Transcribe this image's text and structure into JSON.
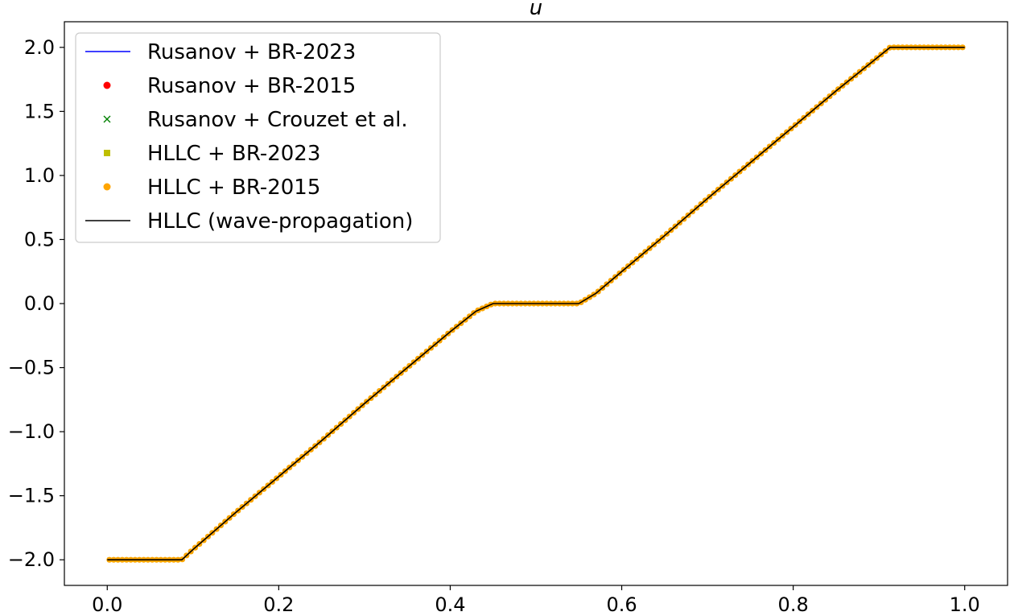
{
  "chart_data": {
    "type": "line",
    "title": "u",
    "xlabel": "",
    "ylabel": "",
    "xlim": [
      -0.05,
      1.05
    ],
    "ylim": [
      -2.2,
      2.2
    ],
    "xticks": [
      0.0,
      0.2,
      0.4,
      0.6,
      0.8,
      1.0
    ],
    "xtick_labels": [
      "0.0",
      "0.2",
      "0.4",
      "0.6",
      "0.8",
      "1.0"
    ],
    "yticks": [
      -2.0,
      -1.5,
      -1.0,
      -0.5,
      0.0,
      0.5,
      1.0,
      1.5,
      2.0
    ],
    "ytick_labels": [
      "−2.0",
      "−1.5",
      "−1.0",
      "−0.5",
      "0.0",
      "0.5",
      "1.0",
      "1.5",
      "2.0"
    ],
    "grid": false,
    "legend_position": "top-left",
    "x": [
      0.0,
      0.05,
      0.087,
      0.1,
      0.15,
      0.2,
      0.25,
      0.3,
      0.35,
      0.4,
      0.43,
      0.45,
      0.5,
      0.55,
      0.57,
      0.6,
      0.65,
      0.7,
      0.75,
      0.8,
      0.85,
      0.9,
      0.913,
      0.95,
      1.0
    ],
    "series": [
      {
        "name": "Rusanov + BR-2023",
        "style": "line",
        "color": "#0000ff",
        "y": [
          -2.0,
          -2.0,
          -2.0,
          -1.92,
          -1.63,
          -1.35,
          -1.07,
          -0.78,
          -0.5,
          -0.22,
          -0.06,
          0.0,
          0.0,
          0.0,
          0.08,
          0.25,
          0.53,
          0.82,
          1.1,
          1.38,
          1.66,
          1.93,
          2.0,
          2.0,
          2.0
        ]
      },
      {
        "name": "Rusanov + BR-2015",
        "style": "dot",
        "color": "#ff0000",
        "y": [
          -2.0,
          -2.0,
          -2.0,
          -1.92,
          -1.63,
          -1.35,
          -1.07,
          -0.78,
          -0.5,
          -0.22,
          -0.06,
          0.0,
          0.0,
          0.0,
          0.08,
          0.25,
          0.53,
          0.82,
          1.1,
          1.38,
          1.66,
          1.93,
          2.0,
          2.0,
          2.0
        ]
      },
      {
        "name": "Rusanov + Crouzet et al.",
        "style": "x",
        "color": "#008000",
        "y": [
          -2.0,
          -2.0,
          -2.0,
          -1.92,
          -1.63,
          -1.35,
          -1.07,
          -0.78,
          -0.5,
          -0.22,
          -0.06,
          0.0,
          0.0,
          0.0,
          0.08,
          0.25,
          0.53,
          0.82,
          1.1,
          1.38,
          1.66,
          1.93,
          2.0,
          2.0,
          2.0
        ]
      },
      {
        "name": "HLLC + BR-2023",
        "style": "square",
        "color": "#bfbf00",
        "y": [
          -2.0,
          -2.0,
          -2.0,
          -1.92,
          -1.63,
          -1.35,
          -1.07,
          -0.78,
          -0.5,
          -0.22,
          -0.06,
          0.0,
          0.0,
          0.0,
          0.08,
          0.25,
          0.53,
          0.82,
          1.1,
          1.38,
          1.66,
          1.93,
          2.0,
          2.0,
          2.0
        ]
      },
      {
        "name": "HLLC + BR-2015",
        "style": "dot",
        "color": "#ffa500",
        "y": [
          -2.0,
          -2.0,
          -2.0,
          -1.92,
          -1.63,
          -1.35,
          -1.07,
          -0.78,
          -0.5,
          -0.22,
          -0.06,
          0.0,
          0.0,
          0.0,
          0.08,
          0.25,
          0.53,
          0.82,
          1.1,
          1.38,
          1.66,
          1.93,
          2.0,
          2.0,
          2.0
        ]
      },
      {
        "name": "HLLC (wave-propagation)",
        "style": "line",
        "color": "#000000",
        "y": [
          -2.0,
          -2.0,
          -2.0,
          -1.92,
          -1.63,
          -1.35,
          -1.07,
          -0.78,
          -0.5,
          -0.22,
          -0.06,
          0.0,
          0.0,
          0.0,
          0.08,
          0.25,
          0.53,
          0.82,
          1.1,
          1.38,
          1.66,
          1.93,
          2.0,
          2.0,
          2.0
        ]
      }
    ]
  }
}
